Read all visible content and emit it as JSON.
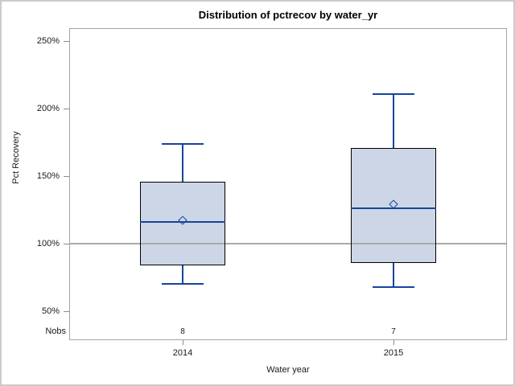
{
  "chart_data": {
    "type": "boxplot",
    "title": "Distribution of pctrecov by water_yr",
    "xlabel": "Water year",
    "ylabel": "Pct Recovery",
    "y_ticks": [
      50,
      100,
      150,
      200,
      250
    ],
    "y_tick_labels": [
      "50%",
      "100%",
      "150%",
      "200%",
      "250%"
    ],
    "ylim": [
      28,
      260
    ],
    "reference_line": 100,
    "grid": "horizontal reference line at 100% only",
    "legend": "none",
    "nobs_label": "Nobs",
    "categories": [
      "2014",
      "2015"
    ],
    "series": [
      {
        "category": "2014",
        "nobs": "8",
        "whisker_low": 70,
        "q1": 84,
        "median": 116,
        "mean": 117,
        "q3": 146,
        "whisker_high": 174
      },
      {
        "category": "2015",
        "nobs": "7",
        "whisker_low": 68,
        "q1": 86,
        "median": 126,
        "mean": 129,
        "q3": 171,
        "whisker_high": 211
      }
    ],
    "colors": {
      "box_fill": "#ccd6e6",
      "box_border": "#000000",
      "stat_lines": "#17449b",
      "reference_line": "#a9a9a9",
      "wall_border": "#a3a3a3",
      "text": "#1a1a1a",
      "canvas_border": "#cccccc"
    }
  }
}
